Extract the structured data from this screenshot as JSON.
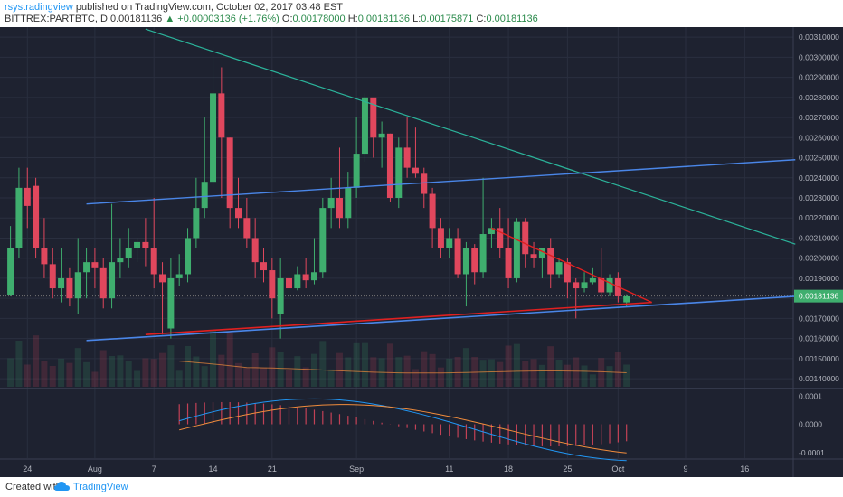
{
  "header": {
    "user": "rsystradingview",
    "published": "published on TradingView.com, October 02, 2017 03:48 EST",
    "symbol": "BITTREX:PARTBTC, D",
    "last": "0.00181136",
    "change_arrow": "▲",
    "change": "+0.00003136 (+1.76%)",
    "o_label": "O:",
    "o_value": "0.00178000",
    "h_label": "H:",
    "h_value": "0.00181136",
    "l_label": "L:",
    "l_value": "0.00175871",
    "c_label": "C:",
    "c_value": "0.00181136"
  },
  "footer": {
    "created": "Created with",
    "brand": "TradingView",
    "logo_icon": "tradingview-cloud-icon"
  },
  "colors": {
    "background": "#1e2230",
    "grid": "#2a2f3f",
    "up": "#3fae6e",
    "down": "#e0475d",
    "blue_line": "#4a86e8",
    "teal_line": "#2bb39a",
    "red_line": "#e02020",
    "macd": "#2196f3",
    "signal": "#f08c3c",
    "axis_text": "#b2b5be",
    "last_price_bg": "#3fae6e"
  },
  "chart_data": {
    "type": "candlestick",
    "x_start": "2017-07-22",
    "date_labels": [
      "24",
      "Aug",
      "7",
      "14",
      "21",
      "Sep",
      "11",
      "18",
      "25",
      "Oct",
      "9",
      "16"
    ],
    "y_ticks": [
      "0.00310000",
      "0.00300000",
      "0.00290000",
      "0.00280000",
      "0.00270000",
      "0.00260000",
      "0.00250000",
      "0.00240000",
      "0.00230000",
      "0.00220000",
      "0.00210000",
      "0.00200000",
      "0.00190000",
      "0.00180000",
      "0.00170000",
      "0.00160000",
      "0.00150000",
      "0.00140000"
    ],
    "last_price_label": "0.00181136",
    "ylim": [
      0.00136,
      0.00315
    ],
    "candles": [
      [
        1815,
        2050,
        2160,
        1810
      ],
      [
        2050,
        2350,
        2450,
        2000
      ],
      [
        2350,
        2260,
        2450,
        2150
      ],
      [
        2360,
        2050,
        2400,
        2000
      ],
      [
        2050,
        1970,
        2200,
        1900
      ],
      [
        1970,
        1850,
        2050,
        1800
      ],
      [
        1850,
        1900,
        2050,
        1780
      ],
      [
        1900,
        1800,
        1950,
        1760
      ],
      [
        1800,
        1930,
        2100,
        1720
      ],
      [
        1930,
        1980,
        2050,
        1800
      ],
      [
        1980,
        1950,
        2050,
        1850
      ],
      [
        1950,
        1800,
        2000,
        1750
      ],
      [
        1800,
        1980,
        2270,
        1750
      ],
      [
        1980,
        2000,
        2100,
        1900
      ],
      [
        2000,
        2050,
        2150,
        1950
      ],
      [
        2050,
        2080,
        2100,
        1980
      ],
      [
        2080,
        2050,
        2200,
        1960
      ],
      [
        2050,
        1920,
        2300,
        1850
      ],
      [
        1920,
        1880,
        1980,
        1620
      ],
      [
        1650,
        1900,
        2000,
        1600
      ],
      [
        1900,
        1920,
        2020,
        1860
      ],
      [
        1920,
        2100,
        2150,
        1880
      ],
      [
        2100,
        2250,
        2400,
        2050
      ],
      [
        2250,
        2380,
        2700,
        2200
      ],
      [
        2380,
        2820,
        3050,
        2350
      ],
      [
        2820,
        2600,
        2950,
        2300
      ],
      [
        2600,
        2250,
        2600,
        2150
      ],
      [
        2250,
        2200,
        2400,
        2150
      ],
      [
        2200,
        2100,
        2300,
        2050
      ],
      [
        2100,
        1980,
        2200,
        1900
      ],
      [
        1980,
        1940,
        2050,
        1880
      ],
      [
        1940,
        1800,
        2000,
        1700
      ],
      [
        1720,
        1900,
        2000,
        1600
      ],
      [
        1900,
        1850,
        1950,
        1800
      ],
      [
        1850,
        1920,
        1960,
        1840
      ],
      [
        1920,
        1890,
        2000,
        1850
      ],
      [
        1890,
        1930,
        2100,
        1870
      ],
      [
        1930,
        2250,
        2300,
        1900
      ],
      [
        2250,
        2300,
        2400,
        2150
      ],
      [
        2300,
        2200,
        2550,
        2150
      ],
      [
        2200,
        2350,
        2430,
        2150
      ],
      [
        2350,
        2520,
        2700,
        2300
      ],
      [
        2520,
        2800,
        2820,
        2480
      ],
      [
        2800,
        2600,
        2780,
        2500
      ],
      [
        2600,
        2620,
        2680,
        2450
      ],
      [
        2620,
        2300,
        2620,
        2280
      ],
      [
        2300,
        2550,
        2600,
        2250
      ],
      [
        2550,
        2450,
        2700,
        2400
      ],
      [
        2450,
        2420,
        2650,
        2400
      ],
      [
        2420,
        2320,
        2450,
        2250
      ],
      [
        2320,
        2150,
        2350,
        2050
      ],
      [
        2150,
        2050,
        2200,
        2000
      ],
      [
        2050,
        2100,
        2150,
        2000
      ],
      [
        2100,
        1920,
        2150,
        1900
      ],
      [
        1920,
        2050,
        2080,
        1760
      ],
      [
        2050,
        1930,
        2070,
        1870
      ],
      [
        1930,
        2120,
        2400,
        1900
      ],
      [
        2120,
        2150,
        2200,
        2050
      ],
      [
        2150,
        2050,
        2250,
        2000
      ],
      [
        2050,
        1900,
        2200,
        1850
      ],
      [
        1900,
        2180,
        2200,
        1880
      ],
      [
        2180,
        2020,
        2200,
        1950
      ],
      [
        2020,
        2000,
        2080,
        1950
      ],
      [
        2000,
        2050,
        2050,
        1900
      ],
      [
        2050,
        1920,
        2100,
        1850
      ],
      [
        1920,
        1980,
        2000,
        1900
      ],
      [
        1980,
        1880,
        2000,
        1800
      ],
      [
        1880,
        1850,
        1900,
        1700
      ],
      [
        1850,
        1880,
        1930,
        1830
      ],
      [
        1880,
        1900,
        1950,
        1870
      ],
      [
        1900,
        1830,
        2050,
        1800
      ],
      [
        1830,
        1900,
        1920,
        1810
      ],
      [
        1900,
        1810,
        1930,
        1780
      ],
      [
        1780,
        1810,
        1820,
        1760
      ]
    ],
    "blue_line_1": {
      "start": [
        "2017-07-31",
        0.00227
      ],
      "end": [
        "2017-10-23",
        0.00249
      ]
    },
    "blue_line_2": {
      "start": [
        "2017-07-31",
        0.00159
      ],
      "end": [
        "2017-10-23",
        0.00181
      ]
    },
    "red_line_1": {
      "start": [
        "2017-08-07",
        0.00162
      ],
      "end": [
        "2017-10-06",
        0.00178
      ]
    },
    "red_line_2": {
      "start": [
        "2017-09-17",
        0.00215
      ],
      "end": [
        "2017-10-06",
        0.00178
      ]
    },
    "teal_line": {
      "start": [
        "2017-08-07",
        0.00314
      ],
      "end": [
        "2017-10-23",
        0.00207
      ]
    },
    "macd_ticks": [
      "0.0001",
      "0.0000",
      "-0.0001"
    ],
    "macd_ylim": [
      -0.00012,
      0.00012
    ]
  }
}
